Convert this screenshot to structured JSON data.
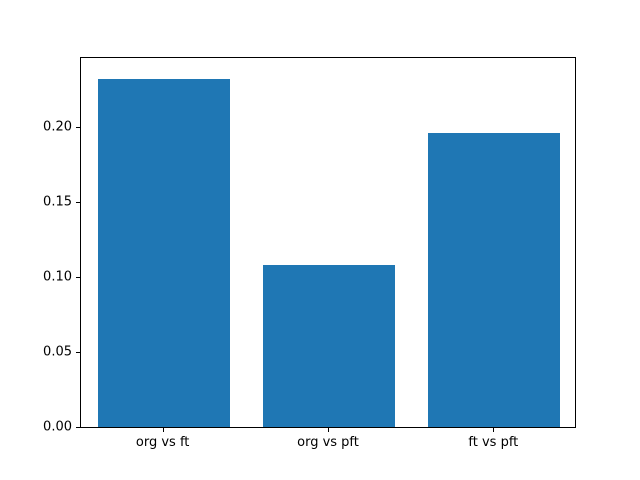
{
  "chart_data": {
    "type": "bar",
    "categories": [
      "org vs ft",
      "org vs pft",
      "ft vs pft"
    ],
    "values": [
      0.232,
      0.108,
      0.196
    ],
    "title": "",
    "xlabel": "",
    "ylabel": "",
    "ylim": [
      0,
      0.2457
    ],
    "yticks": [
      0.0,
      0.05,
      0.1,
      0.15,
      0.2
    ],
    "ytick_labels": [
      "0.00",
      "0.05",
      "0.10",
      "0.15",
      "0.20"
    ],
    "bar_color": "#1f77b4",
    "axis_color": "#000000",
    "background_color": "#ffffff",
    "bar_width_fraction": 0.8,
    "grid": false,
    "legend_position": "none"
  }
}
